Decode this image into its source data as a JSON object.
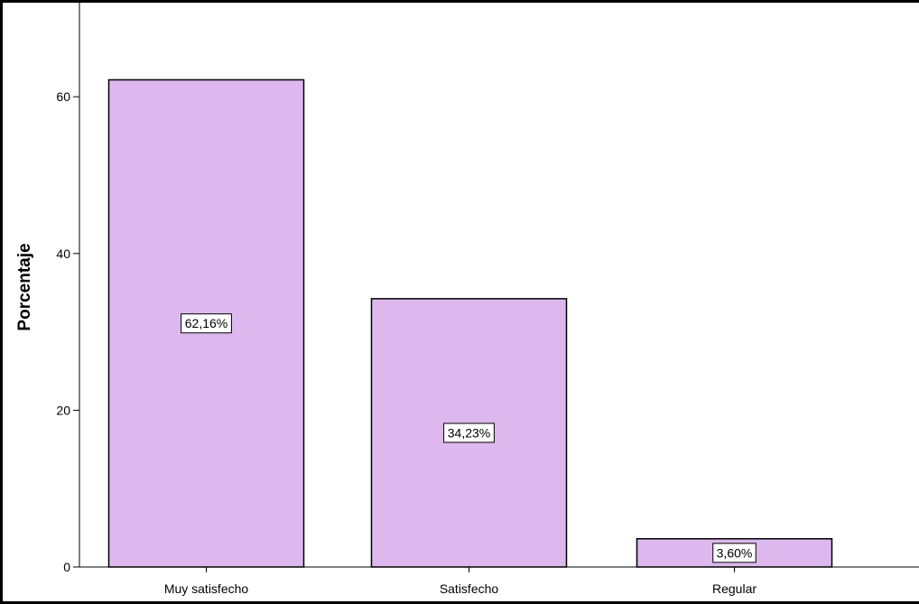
{
  "chart_data": {
    "type": "bar",
    "categories": [
      "Muy satisfecho",
      "Satisfecho",
      "Regular"
    ],
    "values": [
      62.16,
      34.23,
      3.6
    ],
    "data_labels": [
      "62,16%",
      "34,23%",
      "3,60%"
    ],
    "title": "",
    "xlabel": "",
    "ylabel": "Porcentaje",
    "ylim": [
      0,
      72
    ],
    "yticks": [
      0,
      20,
      40,
      60
    ],
    "ytick_labels": [
      "0",
      "20",
      "40",
      "60"
    ],
    "grid": false,
    "legend": "none",
    "bar_color": "#dcb8ee",
    "bar_edge_color": "#000000"
  }
}
